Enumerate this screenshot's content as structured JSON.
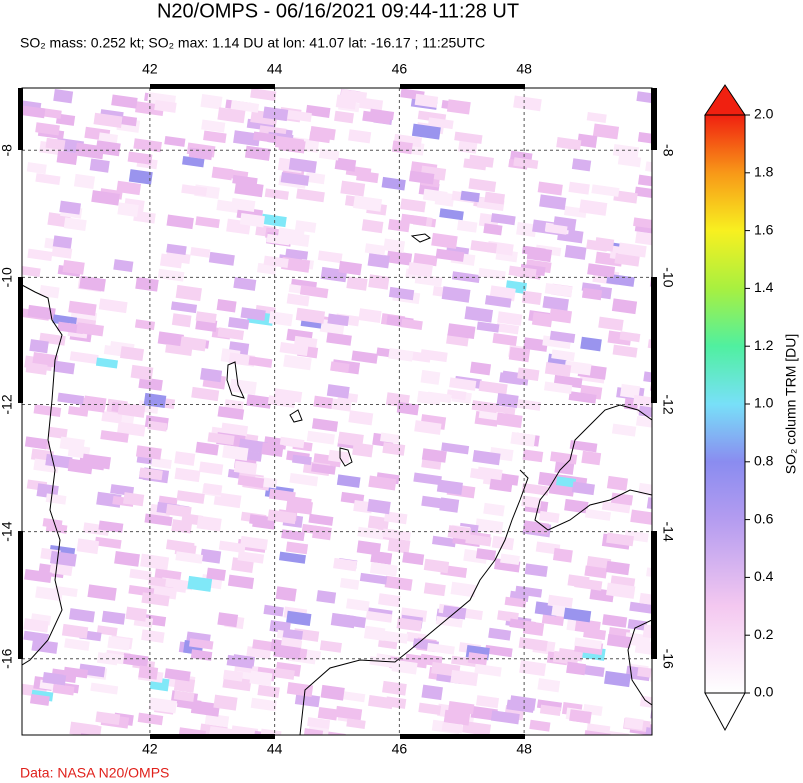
{
  "map": {
    "title": "N20/OMPS - 06/16/2021 09:44-11:28 UT",
    "subtitle": "SO₂ mass: 0.252 kt; SO₂ max: 1.14 DU at lon: 41.07 lat: -16.17 ; 11:25UTC",
    "xlim": [
      39.95,
      50.05
    ],
    "ylim": [
      -17.2,
      -7.02
    ],
    "xticks": [
      42,
      44,
      46,
      48
    ],
    "yticks": [
      -8,
      -10,
      -12,
      -14,
      -16
    ],
    "colorbar": {
      "label": "SO₂ column TRM [DU]",
      "lim": [
        0,
        2
      ],
      "ticks": [
        {
          "value": 0,
          "label": "0.0"
        },
        0.2,
        0.4,
        0.6,
        0.8,
        {
          "value": 1,
          "label": "1.0"
        },
        1.2,
        1.4,
        1.6,
        1.8,
        {
          "value": 2,
          "label": "2.0"
        }
      ]
    },
    "credit": "Data: NASA N20/OMPS"
  }
}
